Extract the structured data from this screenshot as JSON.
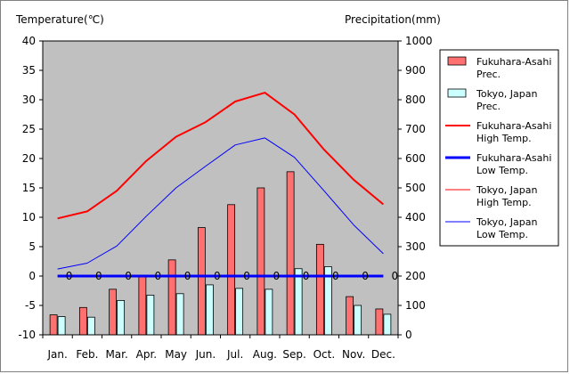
{
  "chart_data": {
    "type": "bar+line",
    "categories": [
      "Jan.",
      "Feb.",
      "Mar.",
      "Apr.",
      "May",
      "Jun.",
      "Jul.",
      "Aug.",
      "Sep.",
      "Oct.",
      "Nov.",
      "Dec."
    ],
    "left_axis": {
      "label": "Temperature(℃)",
      "min": -10,
      "max": 40,
      "step": 5
    },
    "right_axis": {
      "label": "Precipitation(mm)",
      "min": 0,
      "max": 1000,
      "step": 100
    },
    "grid": false,
    "plot_background": "#c0c0c0",
    "legend_position": "right",
    "series": [
      {
        "name": "Fukuhara-Asahi Prec.",
        "name_lines": [
          "Fukuhara-Asahi",
          "Prec."
        ],
        "kind": "bar",
        "axis": "right",
        "color": "#ff7070",
        "values": [
          68,
          93,
          155,
          200,
          255,
          365,
          443,
          500,
          555,
          308,
          130,
          88
        ]
      },
      {
        "name": "Tokyo, Japan Prec.",
        "name_lines": [
          "Tokyo, Japan",
          "Prec."
        ],
        "kind": "bar",
        "axis": "right",
        "color": "#ccffff",
        "values": [
          62,
          60,
          117,
          135,
          140,
          170,
          158,
          155,
          225,
          232,
          100,
          70
        ]
      },
      {
        "name": "Fukuhara-Asahi High Temp.",
        "name_lines": [
          "Fukuhara-Asahi",
          "High Temp."
        ],
        "kind": "line",
        "axis": "left",
        "color": "#ff0000",
        "width": 2,
        "values": [
          9.8,
          11.0,
          14.5,
          19.6,
          23.7,
          26.2,
          29.7,
          31.2,
          27.5,
          21.5,
          16.4,
          12.2
        ]
      },
      {
        "name": "Fukuhara-Asahi Low Temp.",
        "name_lines": [
          "Fukuhara-Asahi",
          "Low Temp."
        ],
        "kind": "line",
        "axis": "left",
        "color": "#0000ff",
        "width": 3,
        "values": [
          0,
          0,
          0,
          0,
          0,
          0,
          0,
          0,
          0,
          0,
          0,
          0
        ],
        "labels": [
          "0",
          "0",
          "0",
          "0",
          "0",
          "0",
          "0",
          "0",
          "0",
          "0",
          "0",
          "0"
        ]
      },
      {
        "name": "Tokyo, Japan High Temp.",
        "name_lines": [
          "Tokyo, Japan",
          "High Temp."
        ],
        "kind": "line",
        "axis": "left",
        "color": "#ff0000",
        "width": 1,
        "values": [
          null,
          null,
          null,
          null,
          null,
          null,
          null,
          null,
          null,
          null,
          null,
          null
        ]
      },
      {
        "name": "Tokyo, Japan Low Temp.",
        "name_lines": [
          "Tokyo, Japan",
          "Low Temp."
        ],
        "kind": "line",
        "axis": "left",
        "color": "#0000ff",
        "width": 1,
        "values": [
          1.2,
          2.2,
          5.1,
          10.2,
          15.0,
          18.7,
          22.3,
          23.5,
          20.2,
          14.5,
          8.7,
          3.8
        ]
      }
    ]
  }
}
